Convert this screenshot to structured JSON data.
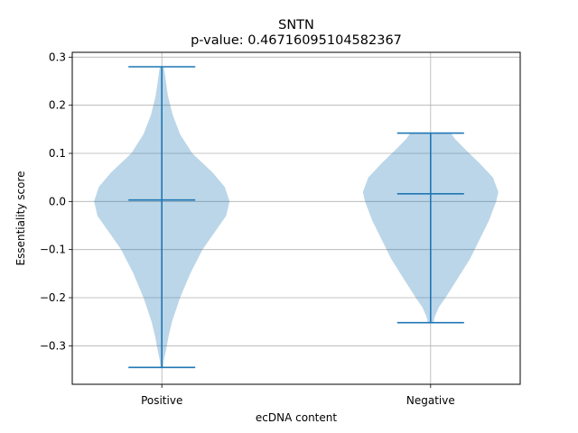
{
  "chart_data": {
    "type": "violin",
    "title": "SNTN",
    "subtitle": "p-value: 0.46716095104582367",
    "xlabel": "ecDNA content",
    "ylabel": "Essentiality score",
    "categories": [
      "Positive",
      "Negative"
    ],
    "ylim": [
      -0.38,
      0.31
    ],
    "yticks": [
      -0.3,
      -0.2,
      -0.1,
      0.0,
      0.1,
      0.2,
      0.3
    ],
    "ytick_labels": [
      "−0.3",
      "−0.2",
      "−0.1",
      "0.0",
      "0.1",
      "0.2",
      "0.3"
    ],
    "grid": true,
    "colors": {
      "body": "#1f77b4",
      "body_opacity": 0.3,
      "lines": "#1f77b4"
    },
    "series": [
      {
        "category": "Positive",
        "min": -0.345,
        "max": 0.28,
        "median": 0.003,
        "density": [
          [
            -0.345,
            0.02
          ],
          [
            -0.33,
            0.03
          ],
          [
            -0.31,
            0.06
          ],
          [
            -0.28,
            0.1
          ],
          [
            -0.25,
            0.15
          ],
          [
            -0.2,
            0.27
          ],
          [
            -0.15,
            0.42
          ],
          [
            -0.1,
            0.6
          ],
          [
            -0.06,
            0.8
          ],
          [
            -0.03,
            0.95
          ],
          [
            0.0,
            1.0
          ],
          [
            0.03,
            0.93
          ],
          [
            0.06,
            0.75
          ],
          [
            0.1,
            0.45
          ],
          [
            0.14,
            0.27
          ],
          [
            0.18,
            0.16
          ],
          [
            0.22,
            0.09
          ],
          [
            0.25,
            0.06
          ],
          [
            0.27,
            0.04
          ],
          [
            0.28,
            0.03
          ]
        ]
      },
      {
        "category": "Negative",
        "min": -0.252,
        "max": 0.142,
        "median": 0.016,
        "density": [
          [
            -0.252,
            0.04
          ],
          [
            -0.24,
            0.06
          ],
          [
            -0.22,
            0.12
          ],
          [
            -0.2,
            0.22
          ],
          [
            -0.16,
            0.4
          ],
          [
            -0.12,
            0.58
          ],
          [
            -0.08,
            0.72
          ],
          [
            -0.04,
            0.86
          ],
          [
            0.0,
            0.97
          ],
          [
            0.02,
            1.0
          ],
          [
            0.05,
            0.92
          ],
          [
            0.08,
            0.72
          ],
          [
            0.11,
            0.5
          ],
          [
            0.13,
            0.36
          ],
          [
            0.142,
            0.3
          ]
        ]
      }
    ]
  }
}
